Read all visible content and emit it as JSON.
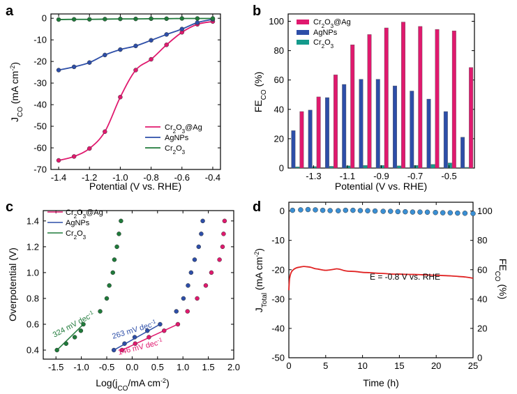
{
  "colors": {
    "cr2o3ag": "#e0196e",
    "agnps": "#2d4ea8",
    "cr2o3": "#1f7a3a",
    "cr2o3_bar": "#149a8c",
    "total_current": "#e02323",
    "fe_marker": "#3a8fd4"
  },
  "chart_data": [
    {
      "panel": "a",
      "type": "line",
      "ylabel": "J_CO (mA cm^-2)",
      "xlabel": "Potential (V vs. RHE)",
      "xlim": [
        -1.45,
        -0.35
      ],
      "ylim": [
        -70,
        2
      ],
      "xticks": [
        "-1.4",
        "-1.2",
        "-1.0",
        "-0.8",
        "-0.6",
        "-0.4"
      ],
      "yticks": [
        "0",
        "-10",
        "-20",
        "-30",
        "-40",
        "-50",
        "-60",
        "-70"
      ],
      "series": [
        {
          "name": "Cr2O3@Ag",
          "color": "#e0196e",
          "x": [
            -1.4,
            -1.3,
            -1.2,
            -1.1,
            -1.0,
            -0.9,
            -0.8,
            -0.7,
            -0.6,
            -0.5,
            -0.4
          ],
          "y": [
            -65.8,
            -64.0,
            -60.3,
            -52.5,
            -36.5,
            -24.0,
            -19.0,
            -12.3,
            -6.5,
            -2.8,
            -1.5
          ]
        },
        {
          "name": "AgNPs",
          "color": "#2d4ea8",
          "x": [
            -1.4,
            -1.3,
            -1.2,
            -1.1,
            -1.0,
            -0.9,
            -0.8,
            -0.7,
            -0.6,
            -0.5,
            -0.4
          ],
          "y": [
            -24.0,
            -22.5,
            -20.5,
            -17.0,
            -14.5,
            -12.8,
            -10.2,
            -7.5,
            -5.0,
            -2.0,
            -0.5
          ]
        },
        {
          "name": "Cr2O3",
          "color": "#1f7a3a",
          "x": [
            -1.4,
            -1.3,
            -1.2,
            -1.1,
            -1.0,
            -0.9,
            -0.8,
            -0.7,
            -0.6,
            -0.5,
            -0.4
          ],
          "y": [
            -0.6,
            -0.5,
            -0.5,
            -0.4,
            -0.3,
            -0.3,
            -0.2,
            -0.2,
            -0.1,
            -0.1,
            -0.1
          ]
        }
      ]
    },
    {
      "panel": "b",
      "type": "bar",
      "ylabel": "FE_CO (%)",
      "xlabel": "Potential (V vs. RHE)",
      "ylim": [
        0,
        105
      ],
      "yticks": [
        "0",
        "20",
        "40",
        "60",
        "80",
        "100"
      ],
      "categories": [
        "-1.4",
        "-1.3",
        "-1.2",
        "-1.1",
        "-1.0",
        "-0.9",
        "-0.8",
        "-0.7",
        "-0.6",
        "-0.5",
        "-0.4"
      ],
      "xticks": [
        "-1.3",
        "-1.1",
        "-0.9",
        "-0.7",
        "-0.5"
      ],
      "series": [
        {
          "name": "Cr2O3@Ag",
          "color": "#e0196e",
          "values": [
            38.5,
            48.5,
            63.5,
            84,
            91,
            95.5,
            99.5,
            96.5,
            94.5,
            93.5,
            68.5
          ]
        },
        {
          "name": "AgNPs",
          "color": "#2d4ea8",
          "values": [
            25.5,
            39.5,
            48,
            57,
            60.5,
            60.5,
            56,
            52.5,
            47,
            38.5,
            21
          ]
        },
        {
          "name": "Cr2O3",
          "color": "#149a8c",
          "values": [
            0.8,
            1,
            1.2,
            1.5,
            1.8,
            1.8,
            1.5,
            1.8,
            2.5,
            3.5,
            0.5
          ]
        }
      ]
    },
    {
      "panel": "c",
      "type": "scatter",
      "ylabel": "Overpotential (V)",
      "xlabel": "Log(j_CO/mA cm^-2)",
      "xlim": [
        -1.75,
        2.0
      ],
      "ylim": [
        0.33,
        1.48
      ],
      "xticks": [
        "-1.5",
        "-1.0",
        "-0.5",
        "0.0",
        "0.5",
        "1.0",
        "1.5",
        "2.0"
      ],
      "yticks": [
        "0.4",
        "0.6",
        "0.8",
        "1.0",
        "1.2",
        "1.4"
      ],
      "series": [
        {
          "name": "Cr2O3@Ag",
          "color": "#e0196e",
          "x": [
            -0.2,
            0.06,
            0.33,
            0.63,
            0.9,
            1.09,
            1.28,
            1.45,
            1.56,
            1.72,
            1.78,
            1.8,
            1.82
          ],
          "y": [
            0.4,
            0.45,
            0.5,
            0.55,
            0.6,
            0.7,
            0.8,
            0.9,
            1.0,
            1.1,
            1.2,
            1.3,
            1.4
          ]
        },
        {
          "name": "AgNPs",
          "color": "#2d4ea8",
          "x": [
            -0.36,
            -0.15,
            0.05,
            0.3,
            0.55,
            0.87,
            1.01,
            1.1,
            1.16,
            1.23,
            1.31,
            1.36,
            1.39
          ],
          "y": [
            0.4,
            0.45,
            0.5,
            0.55,
            0.6,
            0.7,
            0.8,
            0.9,
            1.0,
            1.1,
            1.2,
            1.3,
            1.4
          ]
        },
        {
          "name": "Cr2O3",
          "color": "#1f7a3a",
          "x": [
            -1.48,
            -1.3,
            -1.13,
            -1.01,
            -0.96,
            -0.63,
            -0.5,
            -0.45,
            -0.38,
            -0.35,
            -0.3,
            -0.26,
            -0.22
          ],
          "y": [
            0.4,
            0.45,
            0.5,
            0.55,
            0.6,
            0.7,
            0.8,
            0.9,
            1.0,
            1.1,
            1.2,
            1.3,
            1.4
          ]
        }
      ],
      "fits": [
        {
          "color": "#e0196e",
          "x": [
            -0.2,
            0.9
          ],
          "y": [
            0.4,
            0.6
          ]
        },
        {
          "color": "#2d4ea8",
          "x": [
            -0.36,
            0.55
          ],
          "y": [
            0.4,
            0.6
          ]
        },
        {
          "color": "#1f7a3a",
          "x": [
            -1.48,
            -0.96
          ],
          "y": [
            0.4,
            0.6
          ]
        }
      ],
      "annotations": [
        "324 mV dec-1",
        "263 mV dec-1",
        "146 mV dec-1"
      ]
    },
    {
      "panel": "d",
      "type": "line",
      "ylabel": "J_Total (mA cm^-2)",
      "y2label": "FE_CO (%)",
      "xlabel": "Time (h)",
      "xlim": [
        0,
        25
      ],
      "ylim": [
        -50,
        3
      ],
      "y2lim": [
        0,
        106
      ],
      "xticks": [
        "0",
        "5",
        "10",
        "15",
        "20",
        "25"
      ],
      "yticks": [
        "0",
        "-10",
        "-20",
        "-30",
        "-40",
        "-50"
      ],
      "y2ticks": [
        "0",
        "20",
        "40",
        "60",
        "80",
        "100"
      ],
      "annotation": "E = -0.8 V vs. RHE",
      "current": {
        "color": "#e02323",
        "x": [
          0,
          0.1,
          0.3,
          0.6,
          1,
          1.5,
          2,
          2.5,
          3,
          3.5,
          4,
          5,
          6,
          6.5,
          7,
          7.5,
          8,
          9,
          10,
          11,
          12,
          13,
          14,
          15,
          16,
          17,
          18,
          19,
          20,
          21,
          22,
          23,
          24,
          25
        ],
        "y": [
          -27,
          -23,
          -21,
          -20,
          -19.4,
          -19.1,
          -18.9,
          -19,
          -19.2,
          -19.6,
          -19.8,
          -20.2,
          -19.9,
          -19.7,
          -19.9,
          -20.3,
          -20.5,
          -20.6,
          -20.9,
          -21.0,
          -21.2,
          -21.3,
          -21.5,
          -21.5,
          -21.6,
          -21.6,
          -21.7,
          -21.8,
          -21.9,
          -22.0,
          -22.1,
          -22.3,
          -22.5,
          -22.9
        ]
      },
      "fe": {
        "color": "#3a8fd4",
        "x": [
          0.5,
          1.6,
          2.6,
          3.6,
          4.6,
          5.6,
          6.7,
          7.7,
          8.7,
          9.7,
          10.7,
          11.7,
          12.8,
          13.8,
          14.8,
          15.8,
          16.8,
          17.8,
          18.8,
          19.9,
          20.9,
          21.9,
          22.9,
          23.9,
          25
        ],
        "y": [
          100.5,
          100.8,
          101,
          100.8,
          100.5,
          100.3,
          100.2,
          100.5,
          100.5,
          100.3,
          100.2,
          100.0,
          99.8,
          99.8,
          99.6,
          99.5,
          99.3,
          99.3,
          99.2,
          99.0,
          98.8,
          98.8,
          98.6,
          98.5,
          98.3
        ]
      }
    }
  ]
}
